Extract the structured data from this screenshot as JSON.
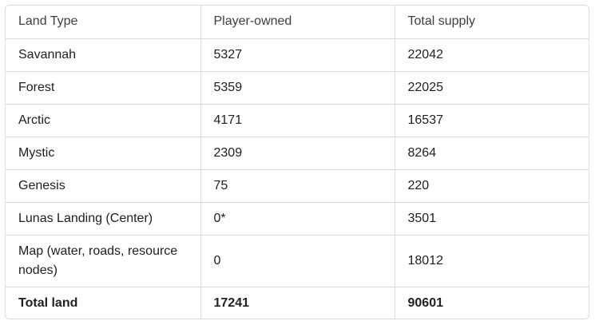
{
  "table": {
    "headers": [
      "Land Type",
      "Player-owned",
      "Total supply"
    ],
    "rows": [
      [
        "Savannah",
        "5327",
        "22042"
      ],
      [
        "Forest",
        "5359",
        "22025"
      ],
      [
        "Arctic",
        "4171",
        "16537"
      ],
      [
        "Mystic",
        "2309",
        "8264"
      ],
      [
        "Genesis",
        "75",
        "220"
      ],
      [
        "Lunas Landing (Center)",
        "0*",
        "3501"
      ],
      [
        "Map (water, roads, resource nodes)",
        "0",
        "18012"
      ]
    ],
    "total": [
      "Total land",
      "17241",
      "90601"
    ]
  }
}
